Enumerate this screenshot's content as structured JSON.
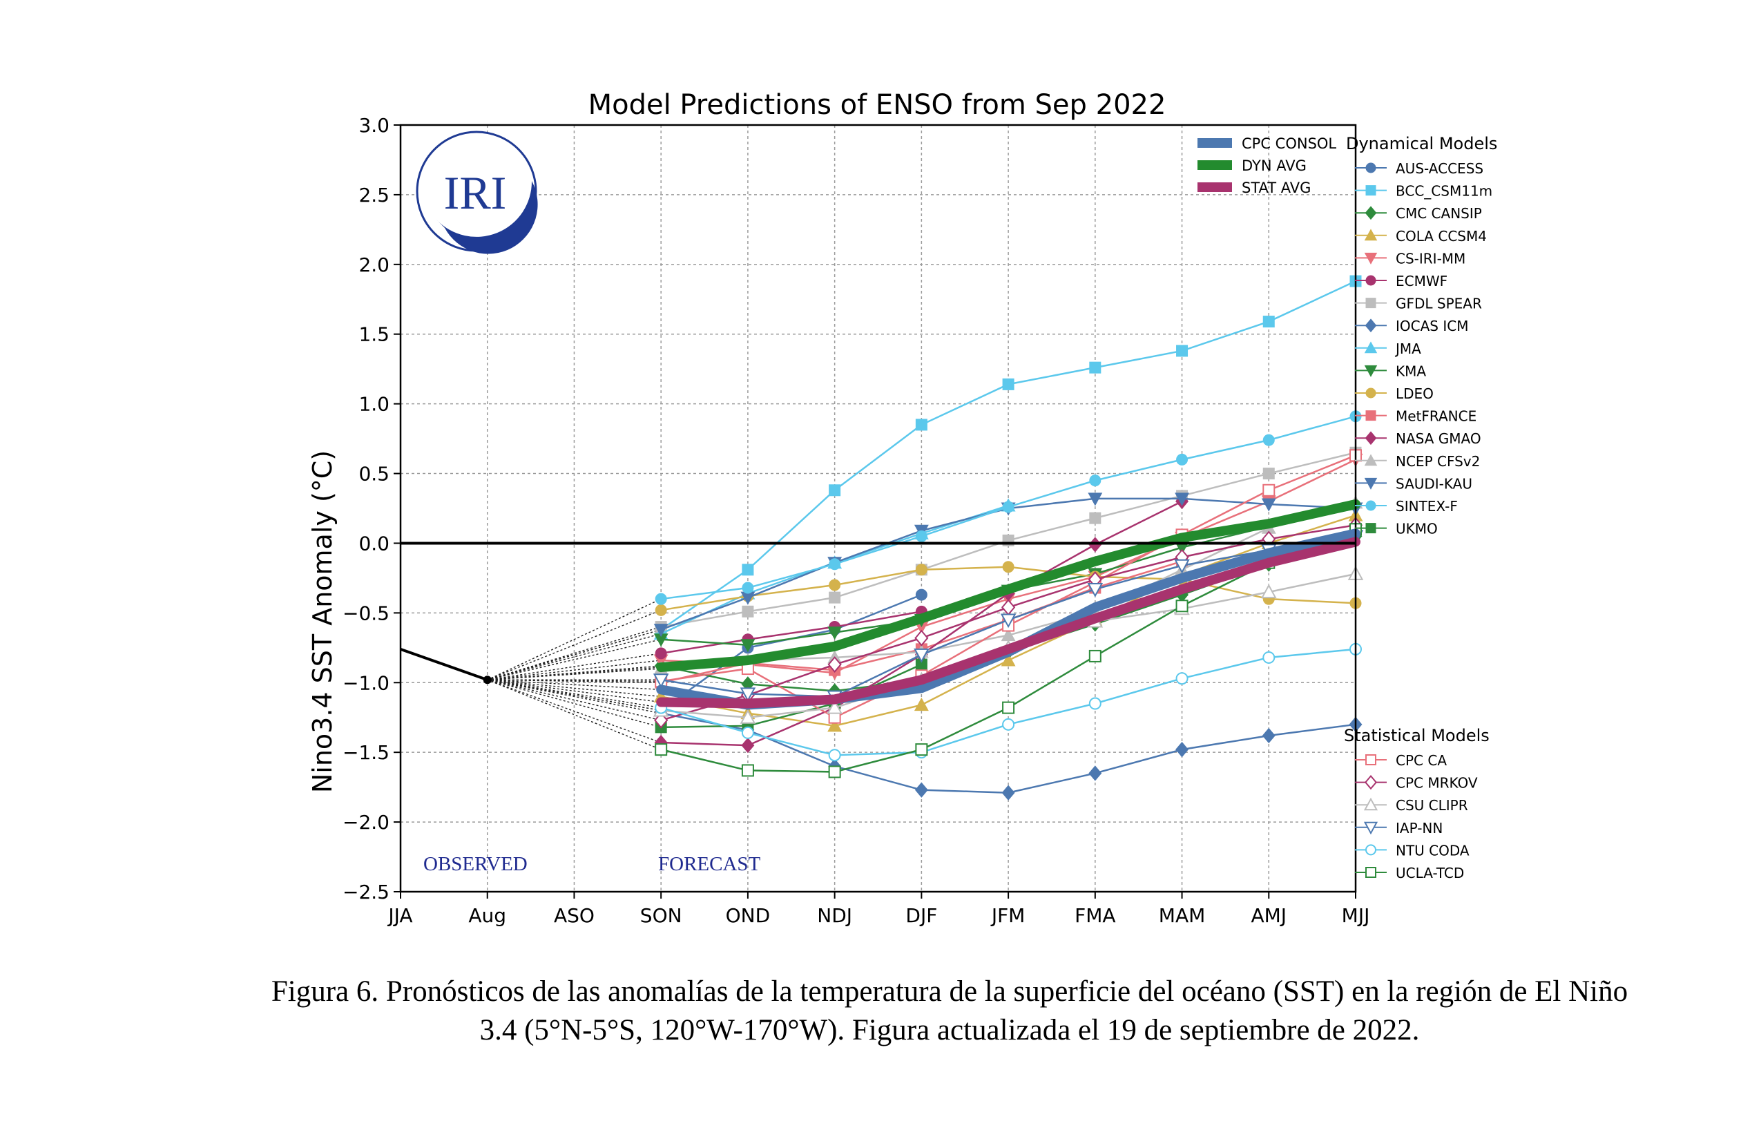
{
  "chart_data": {
    "type": "line",
    "title": "Model Predictions of ENSO from Sep 2022",
    "ylabel": "Nino3.4 SST Anomaly (°C)",
    "xlabel": "",
    "categories": [
      "JJA",
      "Aug",
      "ASO",
      "SON",
      "OND",
      "NDJ",
      "DJF",
      "JFM",
      "FMA",
      "MAM",
      "AMJ",
      "MJJ"
    ],
    "ylim": [
      -2.5,
      3.0
    ],
    "yticks": [
      "3.0",
      "2.5",
      "2.0",
      "1.5",
      "1.0",
      "0.5",
      "0.0",
      "−0.5",
      "−1.0",
      "−1.5",
      "−2.0",
      "−2.5"
    ],
    "grid": true,
    "zero_line": true,
    "annotations": {
      "observed": "OBSERVED",
      "forecast": "FORECAST",
      "logo": "IRI"
    },
    "observed": {
      "x": [
        "JJA",
        "Aug"
      ],
      "values": [
        -0.76,
        -0.98
      ]
    },
    "averages": [
      {
        "name": "CPC CONSOL",
        "color": "#4c78b0",
        "values": [
          -1.05,
          -1.16,
          -1.12,
          -1.04,
          -0.78,
          -0.46,
          -0.25,
          -0.07,
          0.07
        ]
      },
      {
        "name": "DYN AVG",
        "color": "#238b2e",
        "values": [
          -0.89,
          -0.84,
          -0.74,
          -0.54,
          -0.33,
          -0.13,
          0.04,
          0.14,
          0.28
        ]
      },
      {
        "name": "STAT AVG",
        "color": "#a8336e",
        "values": [
          -1.14,
          -1.15,
          -1.12,
          -0.98,
          -0.76,
          -0.54,
          -0.33,
          -0.14,
          0.01
        ]
      }
    ],
    "legend_dynamical_title": "Dynamical Models",
    "legend_statistical_title": "Statistical Models",
    "dynamical": [
      {
        "name": "AUS-ACCESS",
        "color": "#4c78b0",
        "marker": "circle",
        "values": [
          -1.2,
          -0.75,
          -0.62,
          -0.37
        ]
      },
      {
        "name": "BCC_CSM11m",
        "color": "#5bc8ec",
        "marker": "square",
        "values": [
          -0.62,
          -0.19,
          0.38,
          0.85,
          1.14,
          1.26,
          1.38,
          1.59,
          1.88
        ]
      },
      {
        "name": "CMC CANSIP",
        "color": "#2e8b3c",
        "marker": "diamond",
        "values": [
          -0.88,
          -1.01,
          -1.06,
          -0.98,
          -0.78,
          -0.58,
          -0.37,
          -0.15,
          0.05
        ]
      },
      {
        "name": "COLA CCSM4",
        "color": "#d4b24c",
        "marker": "triangle-up",
        "values": [
          -1.1,
          -1.22,
          -1.31,
          -1.16,
          -0.84,
          -0.55,
          -0.23,
          0.0,
          0.2
        ]
      },
      {
        "name": "CS-IRI-MM",
        "color": "#e8707a",
        "marker": "triangle-down",
        "values": [
          -0.84,
          -0.87,
          -0.93,
          -0.6,
          -0.4,
          -0.24,
          0.04,
          0.3,
          0.6
        ]
      },
      {
        "name": "ECMWF",
        "color": "#a8336e",
        "marker": "circle",
        "values": [
          -0.79,
          -0.69,
          -0.6,
          -0.49
        ]
      },
      {
        "name": "GFDL SPEAR",
        "color": "#bdbdbd",
        "marker": "square",
        "values": [
          -0.6,
          -0.49,
          -0.39,
          -0.19,
          0.02,
          0.18,
          0.34,
          0.5,
          0.65
        ]
      },
      {
        "name": "IOCAS ICM",
        "color": "#4c78b0",
        "marker": "diamond",
        "values": [
          -1.22,
          -1.34,
          -1.6,
          -1.77,
          -1.79,
          -1.65,
          -1.48,
          -1.38,
          -1.3
        ]
      },
      {
        "name": "JMA",
        "color": "#5bc8ec",
        "marker": "triangle-up",
        "values": [
          -0.65,
          -0.36,
          -0.14,
          0.07,
          0.27
        ]
      },
      {
        "name": "KMA",
        "color": "#2e8b3c",
        "marker": "triangle-down",
        "values": [
          -0.69,
          -0.73,
          -0.64,
          -0.55,
          -0.34,
          -0.22,
          -0.03,
          0.12,
          0.25
        ]
      },
      {
        "name": "LDEO",
        "color": "#d4b24c",
        "marker": "circle",
        "values": [
          -0.48,
          -0.38,
          -0.3,
          -0.19,
          -0.17,
          -0.24,
          -0.26,
          -0.4,
          -0.43
        ]
      },
      {
        "name": "MetFRANCE",
        "color": "#e8707a",
        "marker": "square",
        "values": [
          -1.0,
          -0.86,
          -0.91,
          -0.76,
          -0.55,
          -0.32,
          -0.13
        ]
      },
      {
        "name": "NASA GMAO",
        "color": "#a8336e",
        "marker": "diamond",
        "values": [
          -1.43,
          -1.45,
          -1.18,
          -0.8,
          -0.36,
          -0.01,
          0.3
        ]
      },
      {
        "name": "NCEP CFSv2",
        "color": "#bdbdbd",
        "marker": "triangle-up",
        "values": [
          -0.9,
          -0.84,
          -0.82,
          -0.78,
          -0.66,
          -0.49,
          -0.19,
          0.11,
          0.29
        ]
      },
      {
        "name": "SAUDI-KAU",
        "color": "#4c78b0",
        "marker": "triangle-down",
        "values": [
          -0.62,
          -0.39,
          -0.14,
          0.09,
          0.25,
          0.32,
          0.32,
          0.28,
          0.25
        ]
      },
      {
        "name": "SINTEX-F",
        "color": "#5bc8ec",
        "marker": "circle",
        "values": [
          -0.4,
          -0.32,
          -0.15,
          0.05,
          0.26,
          0.45,
          0.6,
          0.74,
          0.91
        ]
      },
      {
        "name": "UKMO",
        "color": "#2e8b3c",
        "marker": "square",
        "values": [
          -1.32,
          -1.31,
          -1.15,
          -0.87
        ]
      }
    ],
    "statistical": [
      {
        "name": "CPC CA",
        "color": "#e8707a",
        "marker": "square-open",
        "values": [
          -0.99,
          -0.9,
          -1.25,
          -0.95,
          -0.59,
          -0.28,
          0.06,
          0.38,
          0.63
        ]
      },
      {
        "name": "CPC MRKOV",
        "color": "#a8336e",
        "marker": "diamond-open",
        "values": [
          -1.27,
          -1.09,
          -0.87,
          -0.68,
          -0.46,
          -0.26,
          -0.1,
          0.03,
          0.13
        ]
      },
      {
        "name": "CSU CLIPR",
        "color": "#bdbdbd",
        "marker": "triangle-up-open",
        "values": [
          -1.2,
          -1.25,
          -1.18,
          -0.98,
          -0.75,
          -0.56,
          -0.47,
          -0.35,
          -0.22
        ]
      },
      {
        "name": "IAP-NN",
        "color": "#4c78b0",
        "marker": "triangle-down-open",
        "values": [
          -0.98,
          -1.08,
          -1.1,
          -0.8,
          -0.55,
          -0.33,
          -0.16,
          -0.05,
          0.05
        ]
      },
      {
        "name": "NTU CODA",
        "color": "#5bc8ec",
        "marker": "circle-open",
        "values": [
          -1.18,
          -1.36,
          -1.52,
          -1.5,
          -1.3,
          -1.15,
          -0.97,
          -0.82,
          -0.76
        ]
      },
      {
        "name": "UCLA-TCD",
        "color": "#2e8b3c",
        "marker": "square-open",
        "values": [
          -1.48,
          -1.63,
          -1.64,
          -1.48,
          -1.18,
          -0.81,
          -0.45,
          -0.14,
          0.1
        ]
      }
    ]
  },
  "caption": {
    "line1": "Figura 6. Pronósticos de las anomalías de la temperatura de la superficie del océano (SST) en la región de El Niño",
    "line2": "3.4 (5°N-5°S, 120°W-170°W). Figura actualizada el 19 de septiembre de 2022."
  }
}
